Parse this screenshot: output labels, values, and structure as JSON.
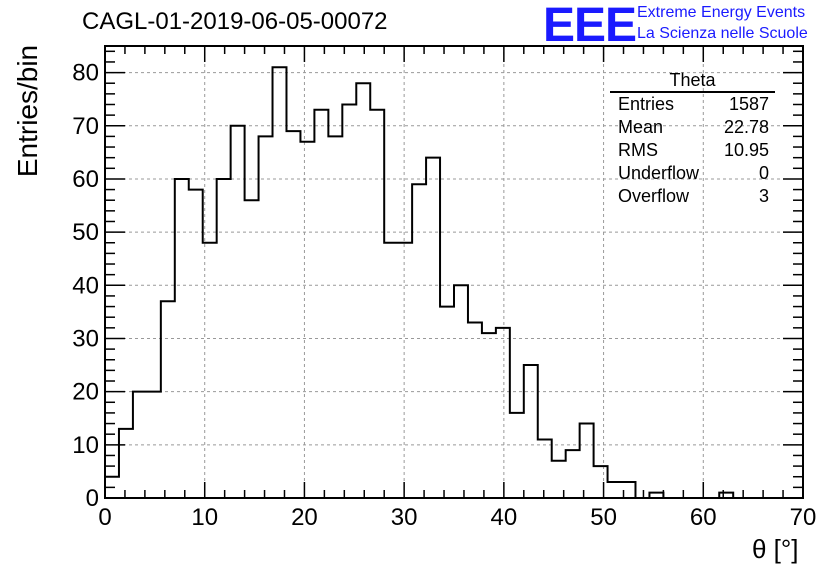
{
  "run_title": "CAGL-01-2019-06-05-00072",
  "logo": {
    "mark": "EEE",
    "line1": "Extreme Energy Events",
    "line2": "La Scienza nelle Scuole",
    "color": "#1a1aff"
  },
  "stats_box": {
    "name": "Theta",
    "rows": [
      {
        "label": "Entries",
        "value": "1587"
      },
      {
        "label": "Mean",
        "value": "22.78"
      },
      {
        "label": "RMS",
        "value": "10.95"
      },
      {
        "label": "Underflow",
        "value": "0"
      },
      {
        "label": "Overflow",
        "value": "3"
      }
    ]
  },
  "chart_data": {
    "type": "bar",
    "style": "step-histogram",
    "xlabel": "θ [°]",
    "ylabel": "Entries/bin",
    "xlim": [
      0,
      70
    ],
    "ylim": [
      0,
      85
    ],
    "grid": true,
    "x_ticks": [
      0,
      10,
      20,
      30,
      40,
      50,
      60,
      70
    ],
    "y_ticks": [
      0,
      10,
      20,
      30,
      40,
      50,
      60,
      70,
      80
    ],
    "bin_edges": [
      0,
      1.4,
      2.8,
      4.2,
      5.6,
      7,
      8.4,
      9.8,
      11.2,
      12.6,
      14,
      15.4,
      16.8,
      18.2,
      19.6,
      21,
      22.4,
      23.8,
      25.2,
      26.6,
      28,
      29.4,
      30.8,
      32.2,
      33.6,
      35,
      36.4,
      37.8,
      39.2,
      40.6,
      42,
      43.4,
      44.8,
      46.2,
      47.6,
      49,
      50.4,
      51.8,
      53.2,
      54.6,
      56,
      57.4,
      58.8,
      60.2,
      61.6,
      63,
      64.4,
      65.8,
      67.2,
      68.6,
      70
    ],
    "values": [
      4,
      13,
      20,
      20,
      37,
      60,
      58,
      48,
      60,
      70,
      56,
      68,
      81,
      69,
      67,
      73,
      68,
      74,
      78,
      73,
      48,
      48,
      59,
      64,
      36,
      40,
      33,
      31,
      32,
      16,
      25,
      11,
      7,
      9,
      14,
      6,
      3,
      3,
      0,
      1,
      0,
      0,
      0,
      0,
      1,
      0,
      0,
      0,
      0,
      0
    ],
    "line_color": "#000000"
  }
}
